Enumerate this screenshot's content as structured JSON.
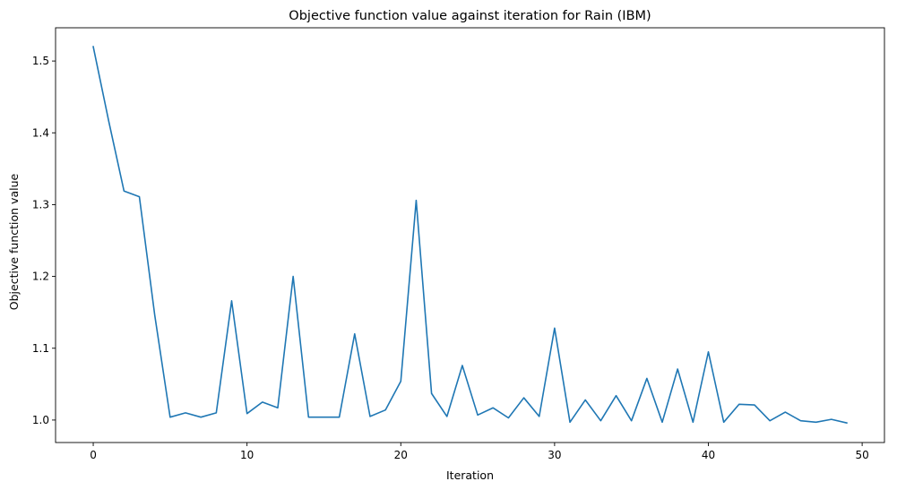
{
  "chart_data": {
    "type": "line",
    "title": "Objective function value against iteration for Rain (IBM)",
    "xlabel": "Iteration",
    "ylabel": "Objective function value",
    "xlim": [
      -2.45,
      51.45
    ],
    "ylim": [
      0.9687,
      1.5463
    ],
    "xticks": [
      0,
      10,
      20,
      30,
      40,
      50
    ],
    "xtick_labels": [
      "0",
      "10",
      "20",
      "30",
      "40",
      "50"
    ],
    "yticks": [
      1.0,
      1.1,
      1.2,
      1.3,
      1.4,
      1.5
    ],
    "ytick_labels": [
      "1.0",
      "1.1",
      "1.2",
      "1.3",
      "1.4",
      "1.5"
    ],
    "grid": false,
    "legend": "none",
    "series": [
      {
        "color": "#1f77b4",
        "x": [
          0,
          1,
          2,
          3,
          4,
          5,
          6,
          7,
          8,
          9,
          10,
          11,
          12,
          13,
          14,
          15,
          16,
          17,
          18,
          19,
          20,
          21,
          22,
          23,
          24,
          25,
          26,
          27,
          28,
          29,
          30,
          31,
          32,
          33,
          34,
          35,
          36,
          37,
          38,
          39,
          40,
          41,
          42,
          43,
          44,
          45,
          46,
          47,
          48,
          49
        ],
        "values": [
          1.52,
          1.417,
          1.319,
          1.311,
          1.146,
          1.004,
          1.01,
          1.004,
          1.01,
          1.166,
          1.009,
          1.025,
          1.017,
          1.2,
          1.004,
          1.004,
          1.004,
          1.12,
          1.005,
          1.014,
          1.054,
          1.306,
          1.037,
          1.005,
          1.076,
          1.007,
          1.017,
          1.003,
          1.031,
          1.005,
          1.128,
          0.997,
          1.028,
          0.999,
          1.034,
          0.999,
          1.058,
          0.997,
          1.071,
          0.997,
          1.095,
          0.997,
          1.022,
          1.021,
          0.999,
          1.011,
          0.999,
          0.997,
          1.001,
          0.996
        ]
      }
    ]
  }
}
